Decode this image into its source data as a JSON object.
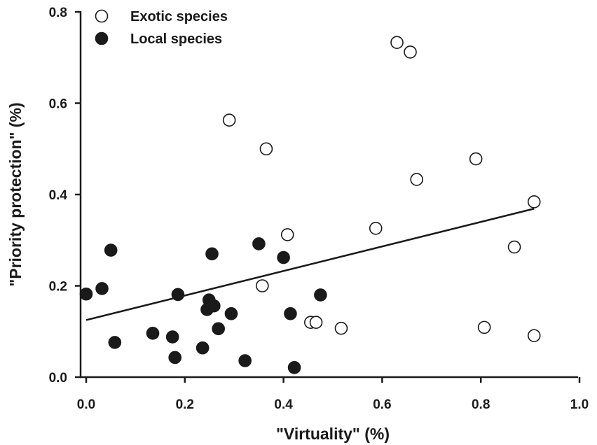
{
  "chart_data": {
    "type": "scatter",
    "xlabel": "\"Virtuality\" (%)",
    "ylabel": "\"Priority protection\" (%)",
    "xlim": [
      0.0,
      1.0
    ],
    "ylim": [
      0.0,
      0.8
    ],
    "x_ticks": [
      "0.0",
      "0.2",
      "0.4",
      "0.6",
      "0.8",
      "1.0"
    ],
    "y_ticks": [
      "0.0",
      "0.2",
      "0.4",
      "0.6",
      "0.8"
    ],
    "x_tick_values": [
      0.0,
      0.2,
      0.4,
      0.6,
      0.8,
      1.0
    ],
    "y_tick_values": [
      0.0,
      0.2,
      0.4,
      0.6,
      0.8
    ],
    "legend_placement": "top-left",
    "grid": false,
    "series": [
      {
        "name": "Exotic species",
        "marker": "open-circle",
        "color": "#1a1a1a",
        "points": [
          [
            0.29,
            0.563
          ],
          [
            0.365,
            0.5
          ],
          [
            0.357,
            0.2
          ],
          [
            0.408,
            0.312
          ],
          [
            0.455,
            0.12
          ],
          [
            0.466,
            0.12
          ],
          [
            0.517,
            0.107
          ],
          [
            0.587,
            0.326
          ],
          [
            0.63,
            0.733
          ],
          [
            0.657,
            0.712
          ],
          [
            0.67,
            0.433
          ],
          [
            0.79,
            0.478
          ],
          [
            0.807,
            0.109
          ],
          [
            0.868,
            0.285
          ],
          [
            0.908,
            0.384
          ],
          [
            0.908,
            0.091
          ]
        ]
      },
      {
        "name": "Local species",
        "marker": "filled-circle",
        "color": "#1a1a1a",
        "points": [
          [
            0.0,
            0.182
          ],
          [
            0.032,
            0.194
          ],
          [
            0.05,
            0.278
          ],
          [
            0.058,
            0.076
          ],
          [
            0.135,
            0.096
          ],
          [
            0.175,
            0.088
          ],
          [
            0.18,
            0.043
          ],
          [
            0.186,
            0.181
          ],
          [
            0.236,
            0.064
          ],
          [
            0.245,
            0.148
          ],
          [
            0.249,
            0.169
          ],
          [
            0.255,
            0.27
          ],
          [
            0.259,
            0.156
          ],
          [
            0.268,
            0.106
          ],
          [
            0.294,
            0.139
          ],
          [
            0.322,
            0.036
          ],
          [
            0.35,
            0.292
          ],
          [
            0.4,
            0.262
          ],
          [
            0.414,
            0.139
          ],
          [
            0.422,
            0.021
          ],
          [
            0.475,
            0.18
          ]
        ]
      }
    ],
    "trend_line": {
      "type": "linear",
      "x": [
        0.0,
        0.908
      ],
      "y": [
        0.125,
        0.369
      ]
    }
  }
}
